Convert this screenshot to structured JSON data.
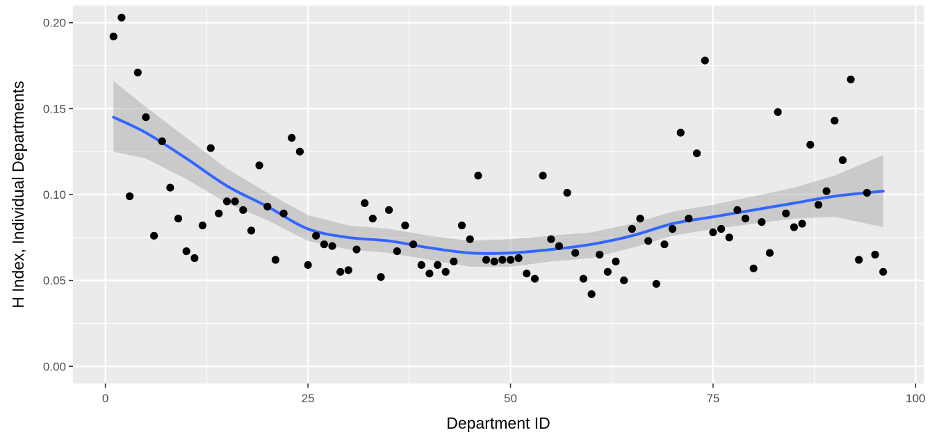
{
  "chart_data": {
    "type": "scatter",
    "xlabel": "Department ID",
    "ylabel": "H Index, Individual Departments",
    "xlim": [
      -4,
      101
    ],
    "ylim": [
      -0.01,
      0.21
    ],
    "x_ticks": [
      0,
      25,
      50,
      75,
      100
    ],
    "x_tick_labels": [
      "0",
      "25",
      "50",
      "75",
      "100"
    ],
    "y_ticks": [
      0.0,
      0.05,
      0.1,
      0.15,
      0.2
    ],
    "y_tick_labels": [
      "0.00",
      "0.05",
      "0.10",
      "0.15",
      "0.20"
    ],
    "grid": true,
    "colors": {
      "panel": "#ebebeb",
      "grid": "#ffffff",
      "point": "#000000",
      "smooth": "#3366ff",
      "ribbon": "#999999"
    },
    "points": [
      [
        1,
        0.192
      ],
      [
        2,
        0.203
      ],
      [
        3,
        0.099
      ],
      [
        4,
        0.171
      ],
      [
        5,
        0.145
      ],
      [
        6,
        0.076
      ],
      [
        7,
        0.131
      ],
      [
        8,
        0.104
      ],
      [
        9,
        0.086
      ],
      [
        10,
        0.067
      ],
      [
        11,
        0.063
      ],
      [
        12,
        0.082
      ],
      [
        13,
        0.127
      ],
      [
        14,
        0.089
      ],
      [
        15,
        0.096
      ],
      [
        16,
        0.096
      ],
      [
        17,
        0.091
      ],
      [
        18,
        0.079
      ],
      [
        19,
        0.117
      ],
      [
        20,
        0.093
      ],
      [
        21,
        0.062
      ],
      [
        22,
        0.089
      ],
      [
        23,
        0.133
      ],
      [
        24,
        0.125
      ],
      [
        25,
        0.059
      ],
      [
        26,
        0.076
      ],
      [
        27,
        0.071
      ],
      [
        28,
        0.07
      ],
      [
        29,
        0.055
      ],
      [
        30,
        0.056
      ],
      [
        31,
        0.068
      ],
      [
        32,
        0.095
      ],
      [
        33,
        0.086
      ],
      [
        34,
        0.052
      ],
      [
        35,
        0.091
      ],
      [
        36,
        0.067
      ],
      [
        37,
        0.082
      ],
      [
        38,
        0.071
      ],
      [
        39,
        0.059
      ],
      [
        40,
        0.054
      ],
      [
        41,
        0.059
      ],
      [
        42,
        0.055
      ],
      [
        43,
        0.061
      ],
      [
        44,
        0.082
      ],
      [
        45,
        0.074
      ],
      [
        46,
        0.111
      ],
      [
        47,
        0.062
      ],
      [
        48,
        0.061
      ],
      [
        49,
        0.062
      ],
      [
        50,
        0.062
      ],
      [
        51,
        0.063
      ],
      [
        52,
        0.054
      ],
      [
        53,
        0.051
      ],
      [
        54,
        0.111
      ],
      [
        55,
        0.074
      ],
      [
        56,
        0.07
      ],
      [
        57,
        0.101
      ],
      [
        58,
        0.066
      ],
      [
        59,
        0.051
      ],
      [
        60,
        0.042
      ],
      [
        61,
        0.065
      ],
      [
        62,
        0.055
      ],
      [
        63,
        0.061
      ],
      [
        64,
        0.05
      ],
      [
        65,
        0.08
      ],
      [
        66,
        0.086
      ],
      [
        67,
        0.073
      ],
      [
        68,
        0.048
      ],
      [
        69,
        0.071
      ],
      [
        70,
        0.08
      ],
      [
        71,
        0.136
      ],
      [
        72,
        0.086
      ],
      [
        73,
        0.124
      ],
      [
        74,
        0.178
      ],
      [
        75,
        0.078
      ],
      [
        76,
        0.08
      ],
      [
        77,
        0.075
      ],
      [
        78,
        0.091
      ],
      [
        79,
        0.086
      ],
      [
        80,
        0.057
      ],
      [
        81,
        0.084
      ],
      [
        82,
        0.066
      ],
      [
        83,
        0.148
      ],
      [
        84,
        0.089
      ],
      [
        85,
        0.081
      ],
      [
        86,
        0.083
      ],
      [
        87,
        0.129
      ],
      [
        88,
        0.094
      ],
      [
        89,
        0.102
      ],
      [
        90,
        0.143
      ],
      [
        91,
        0.12
      ],
      [
        92,
        0.167
      ],
      [
        93,
        0.062
      ],
      [
        94,
        0.101
      ],
      [
        95,
        0.065
      ],
      [
        96,
        0.055
      ]
    ],
    "smooth": [
      [
        1,
        0.145,
        0.125,
        0.166
      ],
      [
        5,
        0.136,
        0.121,
        0.151
      ],
      [
        10,
        0.121,
        0.109,
        0.133
      ],
      [
        15,
        0.105,
        0.095,
        0.115
      ],
      [
        20,
        0.093,
        0.085,
        0.101
      ],
      [
        25,
        0.08,
        0.073,
        0.088
      ],
      [
        30,
        0.075,
        0.068,
        0.082
      ],
      [
        35,
        0.073,
        0.066,
        0.08
      ],
      [
        40,
        0.069,
        0.062,
        0.076
      ],
      [
        45,
        0.066,
        0.058,
        0.073
      ],
      [
        50,
        0.066,
        0.058,
        0.074
      ],
      [
        55,
        0.068,
        0.061,
        0.076
      ],
      [
        60,
        0.071,
        0.063,
        0.078
      ],
      [
        65,
        0.076,
        0.069,
        0.083
      ],
      [
        70,
        0.083,
        0.076,
        0.09
      ],
      [
        75,
        0.087,
        0.08,
        0.094
      ],
      [
        80,
        0.091,
        0.083,
        0.099
      ],
      [
        85,
        0.095,
        0.086,
        0.104
      ],
      [
        90,
        0.099,
        0.087,
        0.111
      ],
      [
        96,
        0.102,
        0.081,
        0.123
      ]
    ]
  }
}
